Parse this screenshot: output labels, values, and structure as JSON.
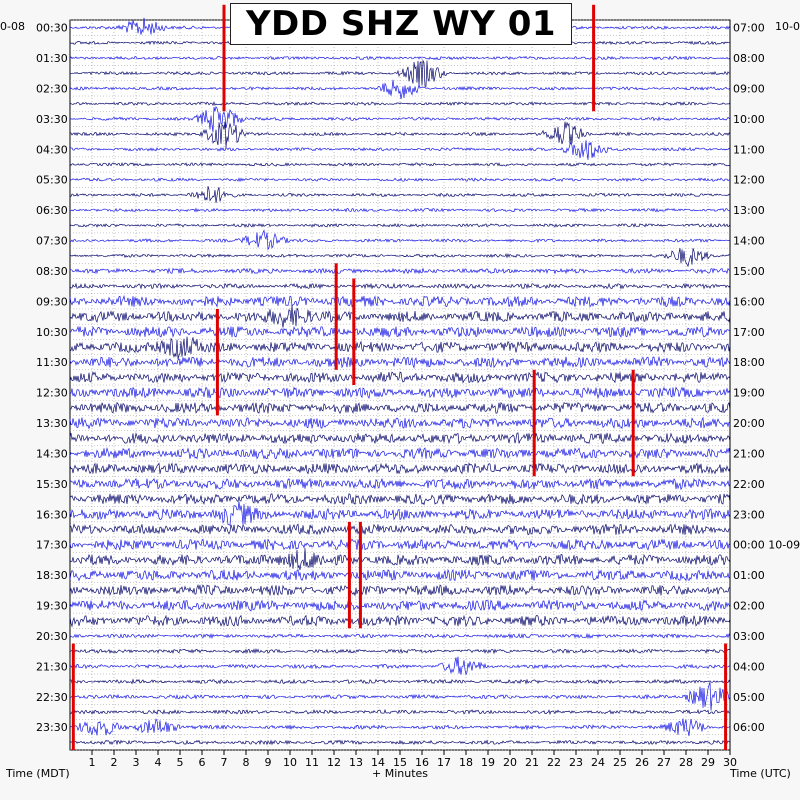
{
  "title": "YDD SHZ WY 01",
  "start_date_left": "0-08",
  "start_date_right": "10-0",
  "left_axis_label": "Time (MDT)",
  "right_axis_label": "Time (UTC)",
  "x_axis_label": "+ Minutes",
  "colors": {
    "trace_dark": "#0a0a6e",
    "trace_blue": "#1a1ae6",
    "event": "#e00000",
    "grid": "#9a9a9a"
  },
  "chart_data": {
    "type": "helicorder",
    "x_ticks": [
      "1",
      "2",
      "3",
      "4",
      "5",
      "6",
      "7",
      "8",
      "9",
      "10",
      "11",
      "12",
      "13",
      "14",
      "15",
      "16",
      "17",
      "18",
      "19",
      "20",
      "21",
      "22",
      "23",
      "24",
      "25",
      "26",
      "27",
      "28",
      "29",
      "30"
    ],
    "xlim": [
      0,
      30
    ],
    "left_hour_labels": [
      "00:30",
      "01:30",
      "02:30",
      "03:30",
      "04:30",
      "05:30",
      "06:30",
      "07:30",
      "08:30",
      "09:30",
      "10:30",
      "11:30",
      "12:30",
      "13:30",
      "14:30",
      "15:30",
      "16:30",
      "17:30",
      "18:30",
      "19:30",
      "20:30",
      "21:30",
      "22:30",
      "23:30"
    ],
    "right_hour_labels": [
      "07:00",
      "08:00",
      "09:00",
      "10:00",
      "11:00",
      "12:00",
      "13:00",
      "14:00",
      "15:00",
      "16:00",
      "17:00",
      "18:00",
      "19:00",
      "20:00",
      "21:00",
      "22:00",
      "23:00",
      "00:00 10-09",
      "01:00",
      "02:00",
      "03:00",
      "04:00",
      "05:00",
      "06:00"
    ],
    "traces_per_hour": 2,
    "red_events": [
      {
        "trace": 2,
        "minute": 7.0
      },
      {
        "trace": 2,
        "minute": 23.8
      },
      {
        "trace": 22,
        "minute": 6.7
      },
      {
        "trace": 19,
        "minute": 12.1
      },
      {
        "trace": 20,
        "minute": 12.9
      },
      {
        "trace": 26,
        "minute": 21.1
      },
      {
        "trace": 26,
        "minute": 25.6
      },
      {
        "trace": 36,
        "minute": 12.7
      },
      {
        "trace": 36,
        "minute": 13.2
      },
      {
        "trace": 44,
        "minute": 0.15
      },
      {
        "trace": 44,
        "minute": 29.8
      }
    ]
  }
}
